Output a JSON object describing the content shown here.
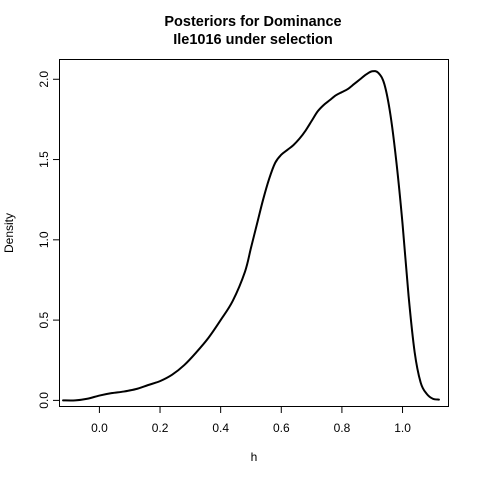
{
  "chart_data": {
    "type": "line",
    "title_lines": [
      "Posteriors for Dominance",
      "Ile1016 under selection"
    ],
    "xlabel": "h",
    "ylabel": "Density",
    "xlim": [
      -0.13,
      1.15
    ],
    "ylim": [
      -0.035,
      2.12
    ],
    "x_ticks": [
      0.0,
      0.2,
      0.4,
      0.6,
      0.8,
      1.0
    ],
    "x_tick_labels": [
      "0.0",
      "0.2",
      "0.4",
      "0.6",
      "0.8",
      "1.0"
    ],
    "y_ticks": [
      0.0,
      0.5,
      1.0,
      1.5,
      2.0
    ],
    "y_tick_labels": [
      "0.0",
      "0.5",
      "1.0",
      "1.5",
      "2.0"
    ],
    "grid": false,
    "series": [
      {
        "color": "#000000",
        "x": [
          -0.12,
          -0.08,
          -0.04,
          0.0,
          0.04,
          0.08,
          0.12,
          0.16,
          0.2,
          0.24,
          0.28,
          0.32,
          0.36,
          0.4,
          0.44,
          0.48,
          0.5,
          0.52,
          0.54,
          0.56,
          0.58,
          0.6,
          0.62,
          0.64,
          0.66,
          0.68,
          0.7,
          0.72,
          0.74,
          0.76,
          0.78,
          0.8,
          0.82,
          0.84,
          0.86,
          0.88,
          0.9,
          0.92,
          0.94,
          0.96,
          0.98,
          1.0,
          1.02,
          1.04,
          1.06,
          1.08,
          1.1,
          1.12
        ],
        "y": [
          0.0,
          0.0,
          0.01,
          0.03,
          0.045,
          0.055,
          0.07,
          0.095,
          0.12,
          0.16,
          0.22,
          0.3,
          0.39,
          0.5,
          0.62,
          0.8,
          0.95,
          1.1,
          1.25,
          1.38,
          1.48,
          1.53,
          1.56,
          1.59,
          1.63,
          1.68,
          1.74,
          1.8,
          1.84,
          1.87,
          1.9,
          1.92,
          1.94,
          1.97,
          2.0,
          2.03,
          2.05,
          2.04,
          1.97,
          1.78,
          1.48,
          1.1,
          0.65,
          0.3,
          0.11,
          0.04,
          0.01,
          0.005
        ]
      }
    ]
  }
}
